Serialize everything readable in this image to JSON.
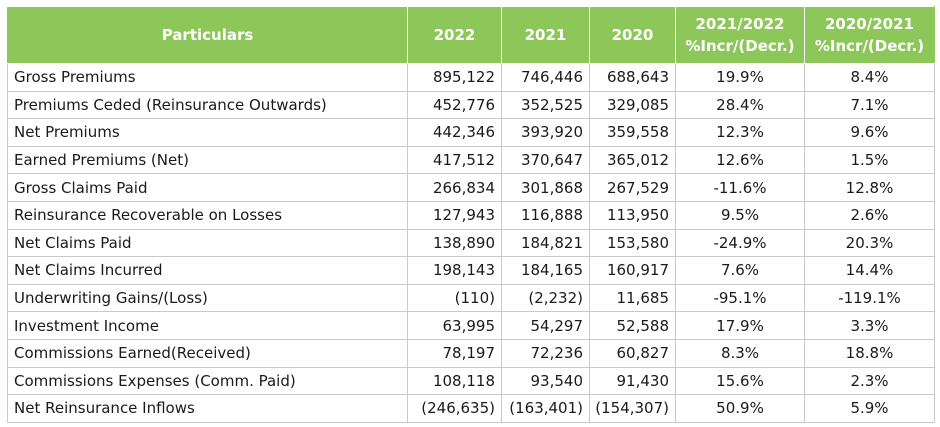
{
  "table": {
    "headers": {
      "particulars": "Particulars",
      "y2022": "2022",
      "y2021": "2021",
      "y2020": "2020",
      "chg1_line1": "2021/2022",
      "chg1_line2": "%Incr/(Decr.)",
      "chg2_line1": "2020/2021",
      "chg2_line2": "%Incr/(Decr.)"
    },
    "rows": [
      {
        "label": "Gross Premiums",
        "y2022": "895,122",
        "y2021": "746,446",
        "y2020": "688,643",
        "chg1": "19.9%",
        "chg2": "8.4%"
      },
      {
        "label": "Premiums Ceded (Reinsurance Outwards)",
        "y2022": "452,776",
        "y2021": "352,525",
        "y2020": "329,085",
        "chg1": "28.4%",
        "chg2": "7.1%"
      },
      {
        "label": "Net Premiums",
        "y2022": "442,346",
        "y2021": "393,920",
        "y2020": "359,558",
        "chg1": "12.3%",
        "chg2": "9.6%"
      },
      {
        "label": "Earned Premiums (Net)",
        "y2022": "417,512",
        "y2021": "370,647",
        "y2020": "365,012",
        "chg1": "12.6%",
        "chg2": "1.5%"
      },
      {
        "label": "Gross Claims Paid",
        "y2022": "266,834",
        "y2021": "301,868",
        "y2020": "267,529",
        "chg1": "-11.6%",
        "chg2": "12.8%"
      },
      {
        "label": "Reinsurance Recoverable on Losses",
        "y2022": "127,943",
        "y2021": "116,888",
        "y2020": "113,950",
        "chg1": "9.5%",
        "chg2": "2.6%"
      },
      {
        "label": "Net Claims Paid",
        "y2022": "138,890",
        "y2021": "184,821",
        "y2020": "153,580",
        "chg1": "-24.9%",
        "chg2": "20.3%"
      },
      {
        "label": "Net Claims Incurred",
        "y2022": "198,143",
        "y2021": "184,165",
        "y2020": "160,917",
        "chg1": "7.6%",
        "chg2": "14.4%"
      },
      {
        "label": "Underwriting Gains/(Loss)",
        "y2022": "(110)",
        "y2021": "(2,232)",
        "y2020": "11,685",
        "chg1": "-95.1%",
        "chg2": "-119.1%"
      },
      {
        "label": "Investment Income",
        "y2022": "63,995",
        "y2021": "54,297",
        "y2020": "52,588",
        "chg1": "17.9%",
        "chg2": "3.3%"
      },
      {
        "label": "Commissions Earned(Received)",
        "y2022": "78,197",
        "y2021": "72,236",
        "y2020": "60,827",
        "chg1": "8.3%",
        "chg2": "18.8%"
      },
      {
        "label": "Commissions Expenses (Comm. Paid)",
        "y2022": "108,118",
        "y2021": "93,540",
        "y2020": "91,430",
        "chg1": "15.6%",
        "chg2": "2.3%"
      },
      {
        "label": "Net Reinsurance Inflows",
        "y2022": "(246,635)",
        "y2021": "(163,401)",
        "y2020": "(154,307)",
        "chg1": "50.9%",
        "chg2": "5.9%"
      }
    ]
  },
  "colors": {
    "header_bg": "#8dc75a",
    "header_text": "#ffffff",
    "grid": "#c9c9c9"
  }
}
